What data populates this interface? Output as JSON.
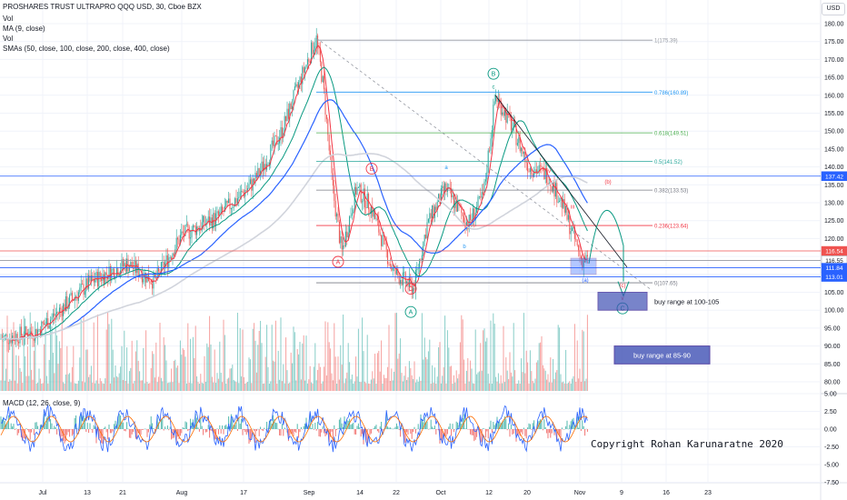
{
  "header": {
    "title": "PROSHARES TRUST ULTRAPRO QQQ USD, 30, Cboe BZX",
    "vol1": "Vol",
    "ma": "MA (9, close)",
    "vol2": "Vol",
    "smas": "SMAs (50, close, 100, close, 200, close, 400, close)",
    "currency": "USD"
  },
  "macd_panel": {
    "label": "MACD (12, 26, close, 9)"
  },
  "chart_data": {
    "type": "candlestick",
    "price_axis_ticks": [
      "180.00",
      "175.00",
      "170.00",
      "165.00",
      "160.00",
      "155.00",
      "150.00",
      "145.00",
      "140.00",
      "135.00",
      "130.00",
      "125.00",
      "120.00",
      "115.00",
      "110.00",
      "105.00",
      "100.00",
      "95.00",
      "90.00",
      "85.00",
      "80.00"
    ],
    "macd_axis_ticks": [
      "5.00",
      "2.50",
      "0.00",
      "-2.50",
      "-5.00",
      "-7.50"
    ],
    "time_axis_labels": [
      "Jul",
      "13",
      "21",
      "Aug",
      "17",
      "Sep",
      "14",
      "22",
      "Oct",
      "12",
      "20",
      "Nov",
      "9",
      "16",
      "23"
    ],
    "price_tags": [
      {
        "label": "137.42",
        "value": 137.42,
        "color": "#2962ff"
      },
      {
        "label": "116.54",
        "value": 116.54,
        "color": "#ef5350"
      },
      {
        "label": "116.55",
        "value": 113.9,
        "color": "#ffffff"
      },
      {
        "label": "111.84",
        "value": 111.84,
        "color": "#2962ff"
      },
      {
        "label": "113.01",
        "value": 109.3,
        "color": "#2962ff"
      }
    ],
    "fib_levels": [
      {
        "label": "1(175.39)",
        "value": 175.39,
        "color": "#9598a1"
      },
      {
        "label": "0.786(160.89)",
        "value": 160.89,
        "color": "#2196f3"
      },
      {
        "label": "0.618(149.51)",
        "value": 149.51,
        "color": "#4caf50"
      },
      {
        "label": "0.5(141.52)",
        "value": 141.52,
        "color": "#26a69a"
      },
      {
        "label": "0.382(133.53)",
        "value": 133.53,
        "color": "#787b86"
      },
      {
        "label": "0.236(123.64)",
        "value": 123.64,
        "color": "#f23645"
      },
      {
        "label": "0(107.65)",
        "value": 107.65,
        "color": "#787b86"
      }
    ],
    "wave_labels": [
      {
        "text": "B",
        "circled": true,
        "color": "#089981"
      },
      {
        "text": "c",
        "circled": false,
        "color": "#089981"
      },
      {
        "text": "B",
        "circled": true,
        "color": "#f23645"
      },
      {
        "text": "A",
        "circled": true,
        "color": "#f23645"
      },
      {
        "text": "C",
        "circled": true,
        "color": "#f23645"
      },
      {
        "text": "A",
        "circled": true,
        "color": "#089981"
      },
      {
        "text": "a",
        "circled": false,
        "color": "#2196f3"
      },
      {
        "text": "b",
        "circled": false,
        "color": "#2196f3"
      },
      {
        "text": "ii",
        "circled": false,
        "color": "#f23645"
      },
      {
        "text": "iv",
        "circled": false,
        "color": "#f23645"
      },
      {
        "text": "iii",
        "circled": false,
        "color": "#f23645"
      },
      {
        "text": "(a)",
        "circled": false,
        "color": "#2962ff"
      },
      {
        "text": "(b)",
        "circled": false,
        "color": "#f23645"
      },
      {
        "text": "(c)",
        "circled": false,
        "color": "#f23645"
      },
      {
        "text": "v",
        "circled": false,
        "color": "#f23645"
      },
      {
        "text": "C",
        "circled": true,
        "color": "#089981"
      }
    ],
    "annotations": [
      {
        "text": "buy range at 100-105",
        "price_low": 100,
        "price_high": 105
      },
      {
        "text": "buy range at 85-90",
        "price_low": 85,
        "price_high": 90
      }
    ],
    "copyright": "Copyright Rohan Karunaratne 2020",
    "colors": {
      "up": "#26a69a",
      "down": "#ef5350",
      "ma": "#f23645",
      "sma50": "#089981",
      "sma100": "#2962ff",
      "sma200": "#ffffff",
      "grid": "#f0f3fa"
    }
  }
}
